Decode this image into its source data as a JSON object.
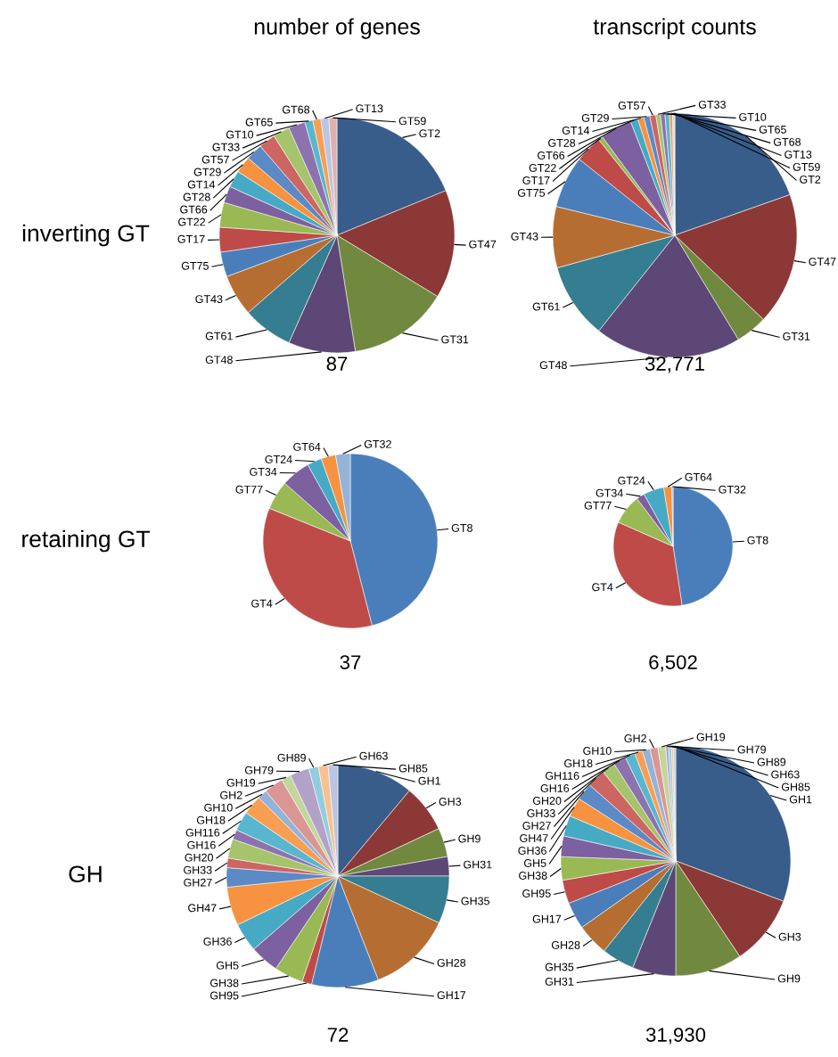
{
  "chart_data": [
    {
      "type": "pie",
      "title": "number of genes",
      "ylabel": "inverting GT",
      "xlabel": "87",
      "categories": [
        "GT2",
        "GT47",
        "GT31",
        "GT48",
        "GT61",
        "GT43",
        "GT75",
        "GT17",
        "GT22",
        "GT66",
        "GT28",
        "GT14",
        "GT29",
        "GT57",
        "GT33",
        "GT10",
        "GT65",
        "GT68",
        "GT13",
        "GT59"
      ],
      "values": [
        18.8,
        14.9,
        13.8,
        9.2,
        6.9,
        5.7,
        3.4,
        3.4,
        3.4,
        2.3,
        2.3,
        2.3,
        2.3,
        2.3,
        2.3,
        2.3,
        1.1,
        1.1,
        1.1,
        1.1
      ],
      "colors": [
        "#385d8a",
        "#8c3836",
        "#71893f",
        "#5c4776",
        "#357d91",
        "#b66d31",
        "#4a7ebb",
        "#be4b48",
        "#98b954",
        "#7d60a0",
        "#46aac5",
        "#f69240",
        "#5b8ac6",
        "#cd6562",
        "#a5c46b",
        "#8d73ad",
        "#58b6cf",
        "#f89e52",
        "#b9c5e2",
        "#e0b0ae"
      ]
    },
    {
      "type": "pie",
      "title": "transcript counts",
      "xlabel": "32,771",
      "categories": [
        "GT2",
        "GT47",
        "GT31",
        "GT48",
        "GT61",
        "GT43",
        "GT75",
        "GT17",
        "GT22",
        "GT66",
        "GT28",
        "GT14",
        "GT29",
        "GT57",
        "GT33",
        "GT10",
        "GT65",
        "GT68",
        "GT13",
        "GT59"
      ],
      "values": [
        19.6,
        17.5,
        4.2,
        19.4,
        10.0,
        8.1,
        6.9,
        3.6,
        0.6,
        4.2,
        1.0,
        0.8,
        0.8,
        0.8,
        0.6,
        0.6,
        0.6,
        0.4,
        0.2,
        0.1
      ],
      "colors": [
        "#385d8a",
        "#8c3836",
        "#71893f",
        "#5c4776",
        "#357d91",
        "#b66d31",
        "#4a7ebb",
        "#be4b48",
        "#98b954",
        "#7d60a0",
        "#46aac5",
        "#f69240",
        "#5b8ac6",
        "#cd6562",
        "#a5c46b",
        "#8d73ad",
        "#58b6cf",
        "#f89e52",
        "#b9c5e2",
        "#e0b0ae"
      ]
    },
    {
      "type": "pie",
      "ylabel": "retaining GT",
      "xlabel": "37",
      "categories": [
        "GT8",
        "GT4",
        "GT77",
        "GT34",
        "GT24",
        "GT64",
        "GT32"
      ],
      "values": [
        46.0,
        35.1,
        5.4,
        5.4,
        2.7,
        2.7,
        2.7
      ],
      "colors": [
        "#4a7ebb",
        "#be4b48",
        "#98b954",
        "#7d60a0",
        "#46aac5",
        "#f69240",
        "#95b3d7"
      ]
    },
    {
      "type": "pie",
      "xlabel": "6,502",
      "categories": [
        "GT8",
        "GT4",
        "GT77",
        "GT34",
        "GT24",
        "GT64",
        "GT32"
      ],
      "values": [
        47.6,
        34.0,
        8.1,
        2.2,
        5.6,
        2.2,
        0.3
      ],
      "colors": [
        "#4a7ebb",
        "#be4b48",
        "#98b954",
        "#7d60a0",
        "#46aac5",
        "#f69240",
        "#95b3d7"
      ]
    },
    {
      "type": "pie",
      "ylabel": "GH",
      "xlabel": "72",
      "categories": [
        "GH1",
        "GH3",
        "GH9",
        "GH31",
        "GH35",
        "GH28",
        "GH17",
        "GH95",
        "GH38",
        "GH5",
        "GH36",
        "GH47",
        "GH27",
        "GH33",
        "GH20",
        "GH16",
        "GH116",
        "GH18",
        "GH10",
        "GH2",
        "GH19",
        "GH79",
        "GH89",
        "GH63",
        "GH85"
      ],
      "values": [
        11.1,
        6.9,
        4.2,
        2.8,
        6.9,
        12.2,
        9.7,
        1.4,
        4.2,
        4.2,
        4.2,
        5.6,
        2.8,
        1.4,
        2.8,
        1.4,
        2.8,
        2.8,
        1.4,
        2.8,
        1.4,
        2.8,
        1.4,
        1.4,
        1.4
      ],
      "colors": [
        "#385d8a",
        "#8c3836",
        "#71893f",
        "#5c4776",
        "#357d91",
        "#b66d31",
        "#4a7ebb",
        "#be4b48",
        "#98b954",
        "#7d60a0",
        "#46aac5",
        "#f69240",
        "#5b8ac6",
        "#cd6562",
        "#a5c46b",
        "#8d73ad",
        "#58b6cf",
        "#f89e52",
        "#95b3d7",
        "#d99694",
        "#c3d69b",
        "#b3a2c7",
        "#93cddd",
        "#fac090",
        "#b9c5e2"
      ]
    },
    {
      "type": "pie",
      "xlabel": "31,930",
      "categories": [
        "GH1",
        "GH3",
        "GH9",
        "GH31",
        "GH35",
        "GH28",
        "GH17",
        "GH95",
        "GH38",
        "GH5",
        "GH36",
        "GH47",
        "GH27",
        "GH33",
        "GH20",
        "GH16",
        "GH116",
        "GH18",
        "GH10",
        "GH2",
        "GH19",
        "GH79",
        "GH89",
        "GH63",
        "GH85"
      ],
      "values": [
        30.7,
        9.9,
        9.4,
        6.1,
        4.6,
        4.5,
        3.8,
        3.3,
        3.3,
        2.9,
        2.9,
        2.7,
        2.4,
        2.6,
        1.9,
        1.8,
        1.4,
        1.1,
        1.1,
        1.1,
        1.1,
        0.4,
        0.4,
        0.3,
        0.3
      ],
      "colors": [
        "#385d8a",
        "#8c3836",
        "#71893f",
        "#5c4776",
        "#357d91",
        "#b66d31",
        "#4a7ebb",
        "#be4b48",
        "#98b954",
        "#7d60a0",
        "#46aac5",
        "#f69240",
        "#5b8ac6",
        "#cd6562",
        "#a5c46b",
        "#8d73ad",
        "#58b6cf",
        "#f89e52",
        "#95b3d7",
        "#d99694",
        "#c3d69b",
        "#b3a2c7",
        "#93cddd",
        "#fac090",
        "#b9c5e2"
      ]
    }
  ]
}
